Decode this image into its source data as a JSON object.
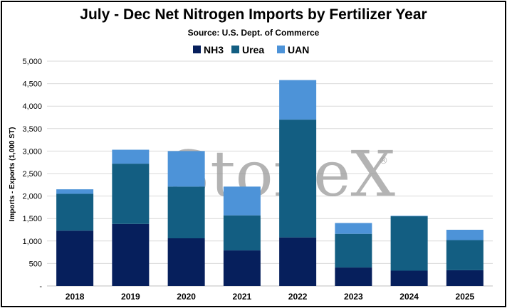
{
  "chart_data": {
    "type": "bar",
    "stacked": true,
    "title": "July - Dec Net Nitrogen Imports by Fertilizer Year",
    "subtitle": "Source: U.S. Dept. of Commerce",
    "ylabel": "Imports - Exports (1,000 ST)",
    "xlabel": "",
    "ylim": [
      0,
      5000
    ],
    "yticks": [
      "-",
      "500",
      "1,000",
      "1,500",
      "2,000",
      "2,500",
      "3,000",
      "3,500",
      "4,000",
      "4,500",
      "5,000"
    ],
    "grid": true,
    "legend_position": "top",
    "categories": [
      "2018",
      "2019",
      "2020",
      "2021",
      "2022",
      "2023",
      "2024",
      "2025"
    ],
    "series": [
      {
        "name": "NH3",
        "color": "#061f5c",
        "values": [
          1230,
          1380,
          1060,
          790,
          1080,
          410,
          340,
          350
        ]
      },
      {
        "name": "Urea",
        "color": "#135e82",
        "values": [
          820,
          1340,
          1150,
          780,
          2620,
          750,
          1210,
          670
        ]
      },
      {
        "name": "UAN",
        "color": "#4d93d8",
        "values": [
          100,
          310,
          790,
          640,
          880,
          240,
          10,
          230
        ]
      }
    ],
    "watermark": "StoneX",
    "watermark_mark": "®"
  }
}
